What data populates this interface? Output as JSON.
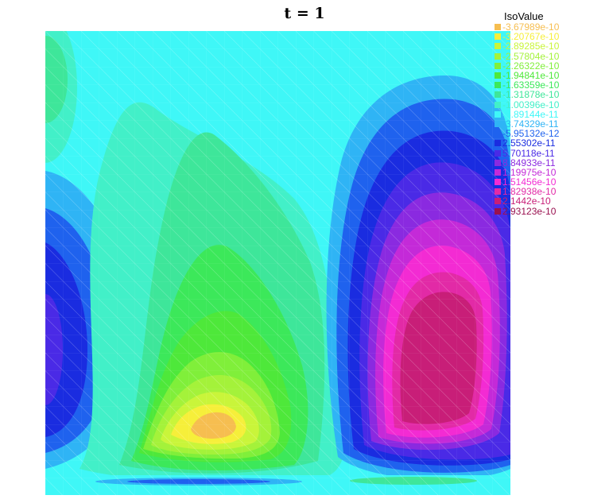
{
  "chart_data": {
    "type": "heatmap",
    "title": "t = 1",
    "legend": {
      "title": "IsoValue",
      "placement": "top-right",
      "levels": [
        {
          "label": "-3.67989e-10",
          "color": "#f6be50"
        },
        {
          "label": "-3.20767e-10",
          "color": "#f6ef3a"
        },
        {
          "label": "-2.89285e-10",
          "color": "#c9f53a"
        },
        {
          "label": "-2.57804e-10",
          "color": "#a4f23a"
        },
        {
          "label": "-2.26322e-10",
          "color": "#80ef3a"
        },
        {
          "label": "-1.94841e-10",
          "color": "#4ee83a"
        },
        {
          "label": "-1.63359e-10",
          "color": "#3ce85a"
        },
        {
          "label": "-1.31878e-10",
          "color": "#3ee69a"
        },
        {
          "label": "-1.00396e-10",
          "color": "#42f0c8"
        },
        {
          "label": "-6.89144e-11",
          "color": "#3ff7f7"
        },
        {
          "label": "-3.74329e-11",
          "color": "#2fb4f5"
        },
        {
          "label": "-5.95132e-12",
          "color": "#1f62ee"
        },
        {
          "label": "2.55302e-11",
          "color": "#1a2ce0"
        },
        {
          "label": "5.70118e-11",
          "color": "#4a2ae6"
        },
        {
          "label": "8.84933e-11",
          "color": "#8a2ae0"
        },
        {
          "label": "1.19975e-10",
          "color": "#c42ad8"
        },
        {
          "label": "1.51456e-10",
          "color": "#f32bd3"
        },
        {
          "label": "1.82938e-10",
          "color": "#e22aa6"
        },
        {
          "label": "2.1442e-10",
          "color": "#c81e78"
        },
        {
          "label": "2.93123e-10",
          "color": "#9a1150"
        }
      ]
    },
    "features": [
      {
        "kind": "minimum",
        "color": "#f6be50",
        "note": "lowest region, center-left bottom"
      },
      {
        "kind": "maximum",
        "color": "#9a1150",
        "note": "highest region, right middle"
      }
    ]
  }
}
